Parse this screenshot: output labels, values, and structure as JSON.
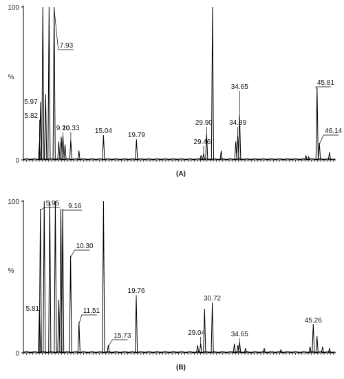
{
  "chart_data": [
    {
      "type": "line",
      "panel_label": "(A)",
      "ylabel": "%",
      "y_ticks": [
        "0",
        "100"
      ],
      "ylim": [
        0,
        100
      ],
      "xlim": [
        3.5,
        48.5
      ],
      "peak_labels": [
        {
          "text": "5.82",
          "rt": 5.82,
          "height": 12
        },
        {
          "text": "5.97",
          "rt": 5.97,
          "height": 38
        },
        {
          "text": "7.93",
          "rt": 7.93,
          "height": 100
        },
        {
          "text": "9.20",
          "rt": 9.2,
          "height": 16
        },
        {
          "text": "10.33",
          "rt": 10.33,
          "height": 13
        },
        {
          "text": "15.04",
          "rt": 15.04,
          "height": 16
        },
        {
          "text": "19.79",
          "rt": 19.79,
          "height": 13
        },
        {
          "text": "29.46",
          "rt": 29.46,
          "height": 4
        },
        {
          "text": "29.90",
          "rt": 29.9,
          "height": 17
        },
        {
          "text": "34.39",
          "rt": 34.39,
          "height": 16
        },
        {
          "text": "34.65",
          "rt": 34.65,
          "height": 29
        },
        {
          "text": "45.81",
          "rt": 45.81,
          "height": 47
        },
        {
          "text": "46.14",
          "rt": 46.14,
          "height": 11
        }
      ],
      "peaks": [
        {
          "rt": 5.82,
          "height": 12
        },
        {
          "rt": 5.97,
          "height": 38
        },
        {
          "rt": 6.3,
          "height": 100
        },
        {
          "rt": 6.7,
          "height": 43
        },
        {
          "rt": 7.2,
          "height": 100
        },
        {
          "rt": 7.93,
          "height": 100
        },
        {
          "rt": 8.6,
          "height": 12
        },
        {
          "rt": 8.95,
          "height": 15
        },
        {
          "rt": 9.2,
          "height": 16
        },
        {
          "rt": 9.5,
          "height": 10
        },
        {
          "rt": 10.33,
          "height": 13
        },
        {
          "rt": 11.5,
          "height": 6
        },
        {
          "rt": 15.04,
          "height": 16
        },
        {
          "rt": 19.79,
          "height": 13
        },
        {
          "rt": 29.1,
          "height": 3
        },
        {
          "rt": 29.46,
          "height": 4
        },
        {
          "rt": 29.9,
          "height": 17
        },
        {
          "rt": 30.75,
          "height": 100
        },
        {
          "rt": 32.0,
          "height": 6
        },
        {
          "rt": 34.1,
          "height": 12
        },
        {
          "rt": 34.39,
          "height": 16
        },
        {
          "rt": 34.65,
          "height": 29
        },
        {
          "rt": 44.2,
          "height": 3
        },
        {
          "rt": 44.6,
          "height": 2
        },
        {
          "rt": 45.81,
          "height": 47
        },
        {
          "rt": 46.14,
          "height": 11
        },
        {
          "rt": 47.6,
          "height": 5
        }
      ]
    },
    {
      "type": "line",
      "panel_label": "(B)",
      "ylabel": "%",
      "y_ticks": [
        "0",
        "100"
      ],
      "ylim": [
        0,
        100
      ],
      "xlim": [
        3.5,
        48.5
      ],
      "peak_labels": [
        {
          "text": "5.81",
          "rt": 5.81,
          "height": 28
        },
        {
          "text": "5.95",
          "rt": 5.95,
          "height": 95
        },
        {
          "text": "9.16",
          "rt": 9.16,
          "height": 95
        },
        {
          "text": "10.30",
          "rt": 10.3,
          "height": 64
        },
        {
          "text": "11.51",
          "rt": 11.51,
          "height": 20
        },
        {
          "text": "15.73",
          "rt": 15.73,
          "height": 5
        },
        {
          "text": "19.76",
          "rt": 19.76,
          "height": 37
        },
        {
          "text": "29.04",
          "rt": 29.04,
          "height": 6
        },
        {
          "text": "30.72",
          "rt": 30.72,
          "height": 33
        },
        {
          "text": "34.65",
          "rt": 34.65,
          "height": 7
        },
        {
          "text": "45.26",
          "rt": 45.26,
          "height": 19
        }
      ],
      "peaks": [
        {
          "rt": 5.81,
          "height": 28
        },
        {
          "rt": 5.95,
          "height": 95
        },
        {
          "rt": 6.5,
          "height": 100
        },
        {
          "rt": 7.3,
          "height": 100
        },
        {
          "rt": 8.1,
          "height": 100
        },
        {
          "rt": 8.6,
          "height": 35
        },
        {
          "rt": 8.9,
          "height": 95
        },
        {
          "rt": 9.16,
          "height": 95
        },
        {
          "rt": 10.3,
          "height": 64
        },
        {
          "rt": 11.51,
          "height": 20
        },
        {
          "rt": 15.04,
          "height": 100
        },
        {
          "rt": 15.73,
          "height": 5
        },
        {
          "rt": 19.76,
          "height": 37
        },
        {
          "rt": 28.6,
          "height": 5
        },
        {
          "rt": 29.04,
          "height": 6
        },
        {
          "rt": 29.6,
          "height": 29
        },
        {
          "rt": 30.72,
          "height": 33
        },
        {
          "rt": 33.9,
          "height": 6
        },
        {
          "rt": 34.4,
          "height": 5
        },
        {
          "rt": 34.65,
          "height": 7
        },
        {
          "rt": 35.5,
          "height": 3
        },
        {
          "rt": 38.2,
          "height": 3
        },
        {
          "rt": 40.6,
          "height": 2
        },
        {
          "rt": 44.8,
          "height": 4
        },
        {
          "rt": 45.26,
          "height": 19
        },
        {
          "rt": 45.8,
          "height": 11
        },
        {
          "rt": 46.6,
          "height": 4
        },
        {
          "rt": 47.6,
          "height": 3
        }
      ]
    }
  ]
}
